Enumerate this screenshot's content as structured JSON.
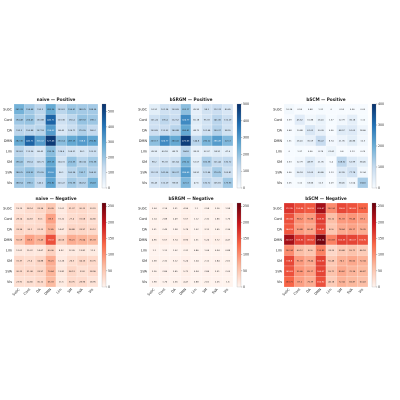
{
  "chart_data": [
    {
      "type": "heatmap",
      "title": "naive — Positive",
      "y_categories": [
        "SubC",
        "Cont",
        "DA",
        "DMN",
        "Lim",
        "SM",
        "SVA",
        "Vis"
      ],
      "colormap": [
        "#f7fbff",
        "#c6dbef",
        "#6baed6",
        "#2171b5",
        "#08306b"
      ],
      "clim": [
        0,
        550
      ],
      "cticks": [
        0,
        100,
        200,
        300,
        400,
        500
      ],
      "values": [
        [
          261.33,
          194.48,
          152.2,
          282.36,
          153.61,
          196.41,
          188.25,
          188.54
        ],
        [
          194.48,
          206.43,
          150.88,
          440.71,
          113.36,
          150.4,
          209.92,
          198.1
        ],
        [
          152.2,
          150.88,
          157.18,
          316.02,
          86.42,
          126.71,
          170.55,
          140.2
        ],
        [
          282.36,
          440.71,
          316.02,
          527.46,
          230.14,
          287.15,
          318.6,
          292.82
        ],
        [
          153.61,
          113.36,
          86.42,
          230.14,
          124.4,
          104.31,
          96.1,
          120.22
        ],
        [
          196.41,
          150.4,
          126.71,
          287.15,
          104.31,
          211.55,
          160.34,
          190.38
        ],
        [
          188.25,
          209.92,
          170.55,
          318.6,
          96.1,
          160.34,
          192.7,
          164.52
        ],
        [
          188.54,
          198.1,
          140.2,
          292.82,
          120.22,
          190.38,
          164.52,
          254.8
        ]
      ]
    },
    {
      "type": "heatmap",
      "title": "bSRGM — Positive",
      "y_categories": [
        "SubC",
        "Cont",
        "DA",
        "DMN",
        "Lim",
        "SM",
        "SVA",
        "Vis"
      ],
      "colormap": [
        "#f7fbff",
        "#c6dbef",
        "#6baed6",
        "#2171b5",
        "#08306b"
      ],
      "clim": [
        0,
        500
      ],
      "cticks": [
        0,
        100,
        200,
        300,
        400,
        500
      ],
      "values": [
        [
          52.51,
          101.24,
          103.69,
          203.17,
          45.93,
          98.2,
          112.74,
          80.45
        ],
        [
          101.24,
          135.4,
          112.52,
          324.77,
          60.18,
          95.33,
          141.06,
          110.29
        ],
        [
          103.69,
          112.52,
          140.88,
          260.41,
          48.72,
          101.64,
          150.37,
          98.55
        ],
        [
          203.17,
          324.77,
          260.41,
          472.63,
          144.8,
          230.12,
          286.49,
          221.3
        ],
        [
          45.93,
          60.18,
          48.72,
          144.8,
          38.22,
          52.07,
          58.91,
          47.6
        ],
        [
          98.2,
          95.33,
          101.64,
          230.12,
          52.07,
          160.38,
          121.44,
          130.72
        ],
        [
          112.74,
          141.06,
          150.37,
          286.49,
          58.91,
          121.44,
          170.25,
          105.81
        ],
        [
          80.45,
          110.29,
          98.55,
          221.3,
          47.6,
          130.72,
          105.81,
          175.93
        ]
      ]
    },
    {
      "type": "heatmap",
      "title": "bSCM — Positive",
      "y_categories": [
        "SubC",
        "Cont",
        "DA",
        "DMN",
        "Lim",
        "SM",
        "SVA",
        "Vis"
      ],
      "colormap": [
        "#f7fbff",
        "#c6dbef",
        "#6baed6",
        "#2171b5",
        "#08306b"
      ],
      "clim": [
        0,
        400
      ],
      "cticks": [
        0,
        100,
        200,
        300,
        400
      ],
      "values": [
        [
          10.24,
          0.59,
          0.48,
          1.31,
          0.0,
          0.53,
          0.56,
          0.05
        ],
        [
          0.59,
          45.62,
          10.88,
          26.41,
          1.37,
          12.79,
          36.18,
          1.12
        ],
        [
          0.48,
          10.88,
          61.02,
          30.09,
          0.56,
          48.97,
          52.03,
          18.66
        ],
        [
          1.31,
          26.41,
          30.09,
          96.22,
          8.74,
          21.35,
          40.86,
          12.5
        ],
        [
          0.0,
          1.37,
          0.56,
          8.74,
          22.61,
          0.4,
          2.13,
          0.29
        ],
        [
          0.53,
          12.79,
          48.97,
          21.35,
          0.4,
          108.52,
          52.99,
          38.45
        ],
        [
          0.56,
          36.18,
          52.03,
          40.86,
          2.13,
          52.99,
          77.78,
          12.04
        ],
        [
          0.05,
          1.12,
          18.66,
          12.5,
          0.29,
          38.45,
          12.04,
          134.6
        ]
      ]
    },
    {
      "type": "heatmap",
      "title": "naive — Negative",
      "x_categories": [
        "SubC",
        "Cont",
        "DA",
        "DMN",
        "Lim",
        "SM",
        "SVA",
        "Vis"
      ],
      "y_categories": [
        "SubC",
        "Cont",
        "DA",
        "DMN",
        "Lim",
        "SM",
        "SVA",
        "Vis"
      ],
      "colormap": [
        "#fff5f0",
        "#fcbba1",
        "#fb6a4a",
        "#cb181d",
        "#67000d"
      ],
      "clim": [
        0,
        260
      ],
      "cticks": [
        0,
        50,
        100,
        150,
        200,
        250
      ],
      "values": [
        [
          19.19,
          28.14,
          33.34,
          50.09,
          12.01,
          31.37,
          30.22,
          23.91
        ],
        [
          28.14,
          24.63,
          30.1,
          85.3,
          15.22,
          27.4,
          31.08,
          24.66
        ],
        [
          33.34,
          30.1,
          31.22,
          72.45,
          14.67,
          34.88,
          33.97,
          30.12
        ],
        [
          50.09,
          85.3,
          72.45,
          150.8,
          40.06,
          76.21,
          70.64,
          65.33
        ],
        [
          12.01,
          15.22,
          14.67,
          40.06,
          8.92,
          12.26,
          13.81,
          11.5
        ],
        [
          31.37,
          27.4,
          34.88,
          76.21,
          12.26,
          26.3,
          34.13,
          30.75
        ],
        [
          30.22,
          31.08,
          33.97,
          70.64,
          13.81,
          34.13,
          23.8,
          28.96
        ],
        [
          23.91,
          24.66,
          30.12,
          65.33,
          11.5,
          30.75,
          28.96,
          18.95
        ]
      ]
    },
    {
      "type": "heatmap",
      "title": "bSRGM — Negative",
      "x_categories": [
        "SubC",
        "Cont",
        "DA",
        "DMN",
        "Lim",
        "SM",
        "SVA",
        "Vis"
      ],
      "y_categories": [
        "SubC",
        "Cont",
        "DA",
        "DMN",
        "Lim",
        "SM",
        "SVA",
        "Vis"
      ],
      "colormap": [
        "#fff5f0",
        "#fcbba1",
        "#fb6a4a",
        "#cb181d",
        "#67000d"
      ],
      "clim": [
        0,
        260
      ],
      "cticks": [
        0,
        50,
        100,
        150,
        200,
        250
      ],
      "values": [
        [
          2.04,
          2.14,
          2.51,
          4.96,
          1.1,
          2.58,
          2.26,
          1.98
        ],
        [
          2.14,
          2.88,
          2.49,
          5.57,
          1.12,
          2.32,
          2.86,
          1.76
        ],
        [
          2.51,
          2.49,
          1.98,
          5.74,
          1.02,
          3.12,
          2.45,
          2.36
        ],
        [
          4.96,
          5.57,
          5.74,
          8.96,
          2.31,
          5.24,
          5.72,
          4.47
        ],
        [
          1.1,
          1.12,
          1.02,
          2.31,
          0.86,
          1.04,
          0.94,
          0.88
        ],
        [
          2.58,
          2.32,
          3.12,
          5.24,
          1.04,
          2.12,
          2.84,
          2.61
        ],
        [
          2.26,
          2.86,
          2.45,
          5.72,
          0.94,
          2.84,
          2.51,
          2.05
        ],
        [
          1.98,
          1.76,
          2.36,
          4.47,
          0.88,
          2.61,
          2.05,
          1.6
        ]
      ]
    },
    {
      "type": "heatmap",
      "title": "bSCM — Negative",
      "x_categories": [
        "SubC",
        "Cont",
        "DA",
        "DMN",
        "Lim",
        "SM",
        "SVA",
        "Vis"
      ],
      "y_categories": [
        "SubC",
        "Cont",
        "DA",
        "DMN",
        "Lim",
        "SM",
        "SVA",
        "Vis"
      ],
      "colormap": [
        "#fff5f0",
        "#fcbba1",
        "#fb6a4a",
        "#cb181d",
        "#67000d"
      ],
      "clim": [
        0,
        260
      ],
      "cticks": [
        0,
        50,
        100,
        150,
        200,
        250
      ],
      "values": [
        [
          172.95,
          150.84,
          144.18,
          220.67,
          102.34,
          156.8,
          149.63,
          133.71
        ],
        [
          150.84,
          98.12,
          90.88,
          165.31,
          60.12,
          91.33,
          95.46,
          87.2
        ],
        [
          144.18,
          90.88,
          80.41,
          158.62,
          52.6,
          78.44,
          85.17,
          76.39
        ],
        [
          220.67,
          165.31,
          158.62,
          250.14,
          110.83,
          162.55,
          160.07,
          150.92
        ],
        [
          102.34,
          60.12,
          52.6,
          110.83,
          33.25,
          50.48,
          55.71,
          46.18
        ],
        [
          156.8,
          91.33,
          78.44,
          162.55,
          50.48,
          74.1,
          80.62,
          72.34
        ],
        [
          149.63,
          95.46,
          85.17,
          160.07,
          55.71,
          80.62,
          70.36,
          66.87
        ],
        [
          133.71,
          87.2,
          76.39,
          150.92,
          46.18,
          72.34,
          66.87,
          60.43
        ]
      ]
    }
  ]
}
